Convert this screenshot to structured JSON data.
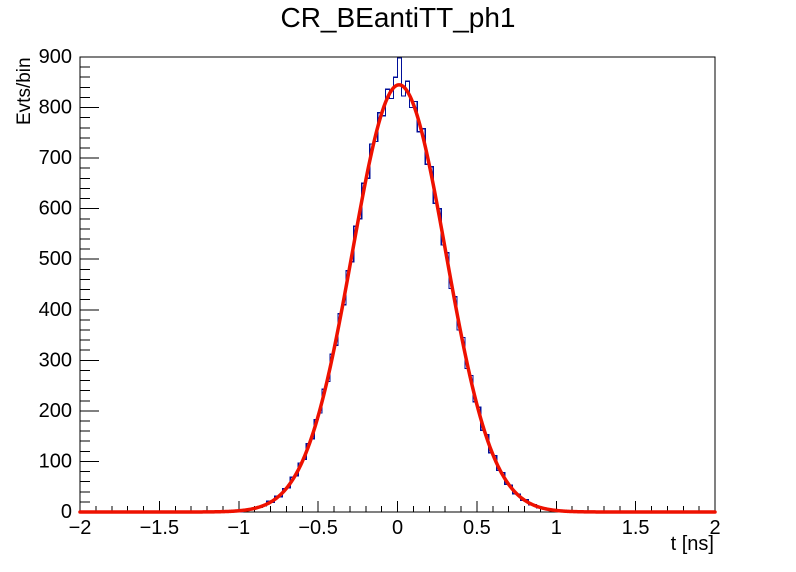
{
  "title": "CR_BEantiTT_ph1",
  "chart_data": {
    "type": "bar",
    "style": "step-histogram-with-fit-curve",
    "title": "CR_BEantiTT_ph1",
    "xlabel": "t [ns]",
    "ylabel": "Evts/bin",
    "xlim": [
      -2,
      2
    ],
    "ylim": [
      0,
      900
    ],
    "grid": false,
    "legend_position": "none",
    "x_ticks": {
      "values": [
        -2,
        -1.5,
        -1,
        -0.5,
        0,
        0.5,
        1,
        1.5,
        2
      ],
      "labels": [
        "−2",
        "−1.5",
        "−1",
        "−0.5",
        "0",
        "0.5",
        "1",
        "1.5",
        "2"
      ],
      "minor_step": 0.1
    },
    "y_ticks": {
      "values": [
        0,
        100,
        200,
        300,
        400,
        500,
        600,
        700,
        800,
        900
      ],
      "labels": [
        "0",
        "100",
        "200",
        "300",
        "400",
        "500",
        "600",
        "700",
        "800",
        "900"
      ],
      "minor_step": 20
    },
    "histogram": {
      "nbins": 160,
      "xmin": -2,
      "xmax": 2,
      "bin_width": 0.025,
      "first_nonzero_bin": 41,
      "values": [
        2,
        6,
        5,
        10,
        9,
        12,
        21,
        19,
        31,
        30,
        46,
        48,
        69,
        72,
        97,
        104,
        135,
        145,
        183,
        196,
        243,
        258,
        312,
        330,
        392,
        410,
        477,
        495,
        565,
        580,
        650,
        660,
        728,
        733,
        790,
        784,
        836,
        818,
        860,
        898,
        823,
        852,
        800,
        812,
        752,
        758,
        688,
        683,
        611,
        600,
        528,
        513,
        442,
        426,
        360,
        345,
        284,
        270,
        218,
        207,
        162,
        153,
        117,
        111,
        82,
        78,
        55,
        53,
        36,
        35,
        23,
        24,
        14,
        15,
        8,
        9,
        5,
        6,
        2,
        3,
        1
      ]
    },
    "fit": {
      "model": "gaussian",
      "amplitude": 845,
      "mean": 0.01,
      "sigma": 0.295,
      "range": [
        -2,
        2
      ]
    },
    "colors": {
      "histogram_line": "#000f99",
      "fit_line": "#ee1100",
      "axis": "#000000",
      "background": "#ffffff"
    }
  }
}
